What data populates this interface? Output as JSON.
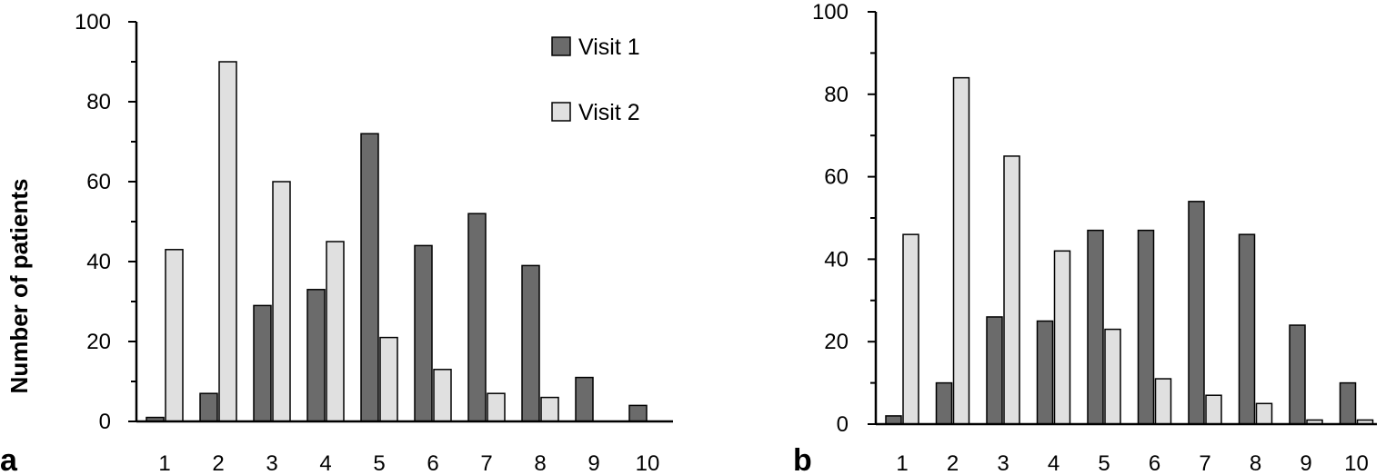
{
  "y_axis_label": "Number of patients",
  "colors": {
    "visit1": "#6b6b6b",
    "visit2": "#e0e0e0",
    "axis": "#000000"
  },
  "chart_data": [
    {
      "panel": "a",
      "type": "bar",
      "ylabel": "Number of patients",
      "ylim": [
        0,
        100
      ],
      "yticks": [
        0,
        20,
        40,
        60,
        80,
        100
      ],
      "categories": [
        "1",
        "2",
        "3",
        "4",
        "5",
        "6",
        "7",
        "8",
        "9",
        "10"
      ],
      "legend": "top-right",
      "series": [
        {
          "name": "Visit 1",
          "values": [
            1,
            7,
            29,
            33,
            72,
            44,
            52,
            39,
            11,
            4
          ]
        },
        {
          "name": "Visit 2",
          "values": [
            43,
            90,
            60,
            45,
            21,
            13,
            7,
            6,
            0,
            0
          ]
        }
      ]
    },
    {
      "panel": "b",
      "type": "bar",
      "ylabel": "",
      "ylim": [
        0,
        100
      ],
      "yticks": [
        0,
        20,
        40,
        60,
        80,
        100
      ],
      "categories": [
        "1",
        "2",
        "3",
        "4",
        "5",
        "6",
        "7",
        "8",
        "9",
        "10"
      ],
      "series": [
        {
          "name": "Visit 1",
          "values": [
            2,
            10,
            26,
            25,
            47,
            47,
            54,
            46,
            24,
            10
          ]
        },
        {
          "name": "Visit 2",
          "values": [
            46,
            84,
            65,
            42,
            23,
            11,
            7,
            5,
            1,
            1
          ]
        }
      ]
    }
  ]
}
